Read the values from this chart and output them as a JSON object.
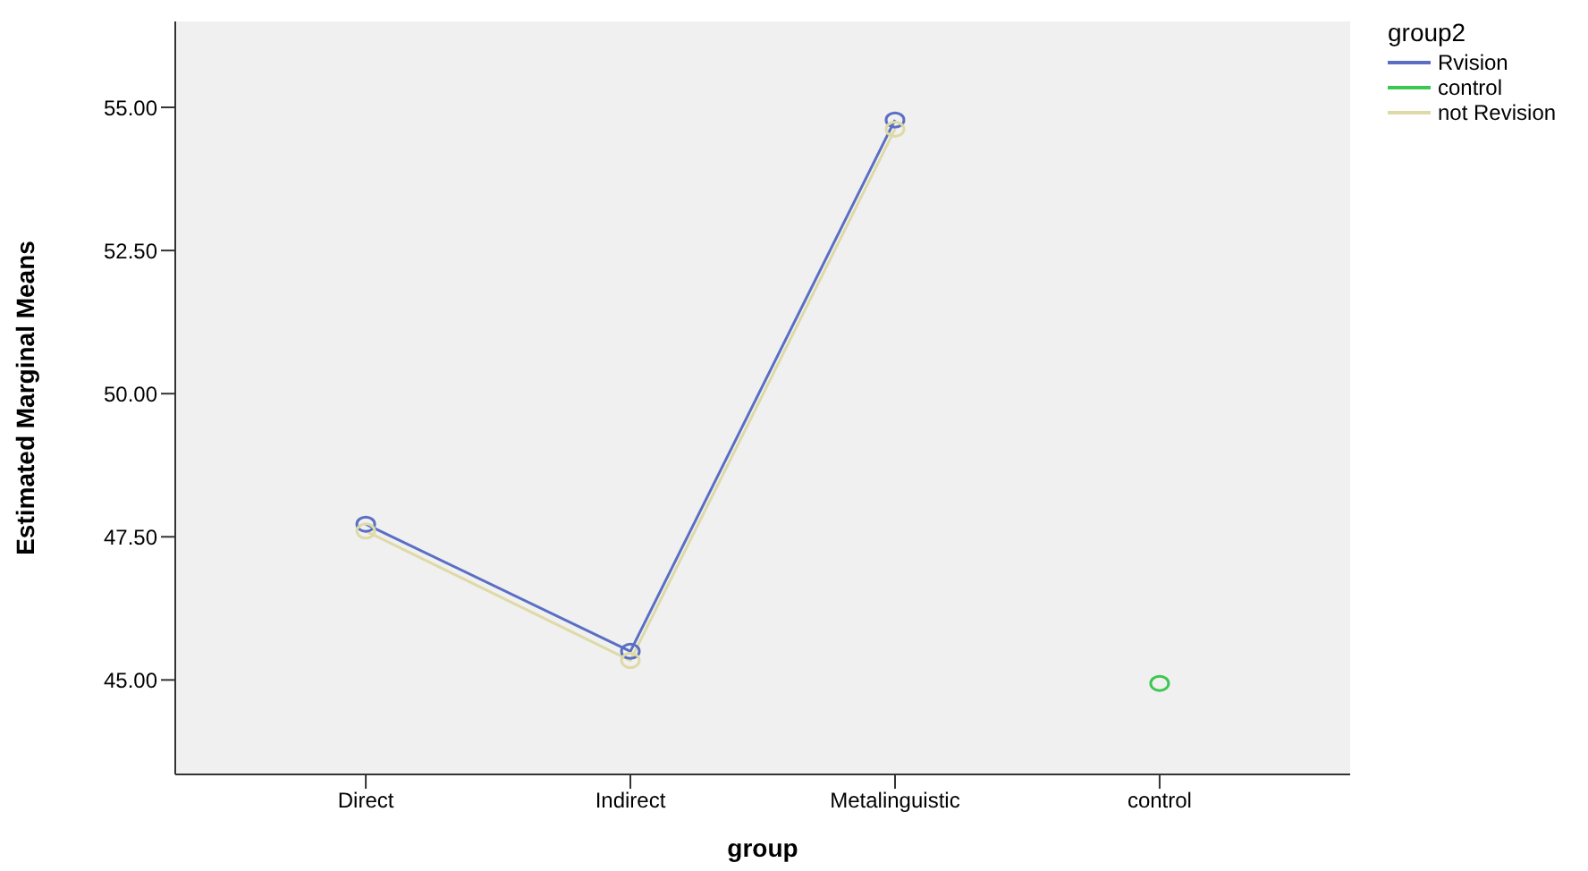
{
  "chart_data": {
    "type": "line",
    "xlabel": "group",
    "ylabel": "Estimated Marginal Means",
    "legend_title": "group2",
    "categories": [
      "Direct",
      "Indirect",
      "Metalinguistic",
      "control"
    ],
    "series": [
      {
        "name": "Rvision",
        "color": "#5a6fc4",
        "values": [
          47.72,
          45.5,
          54.78,
          null
        ]
      },
      {
        "name": "control",
        "color": "#3cc850",
        "values": [
          null,
          null,
          null,
          44.94
        ]
      },
      {
        "name": "not Revision",
        "color": "#dedaa8",
        "values": [
          47.6,
          45.34,
          54.62,
          null
        ]
      }
    ],
    "ylim": [
      43.35,
      56.5
    ],
    "yticks": [
      {
        "value": 45,
        "label": "45.00"
      },
      {
        "value": 47.5,
        "label": "47.50"
      },
      {
        "value": 50,
        "label": "50.00"
      },
      {
        "value": 52.5,
        "label": "52.50"
      },
      {
        "value": 55,
        "label": "55.00"
      }
    ],
    "marker": "circle",
    "line_style": "solid",
    "legend": "top right",
    "grid": false
  }
}
